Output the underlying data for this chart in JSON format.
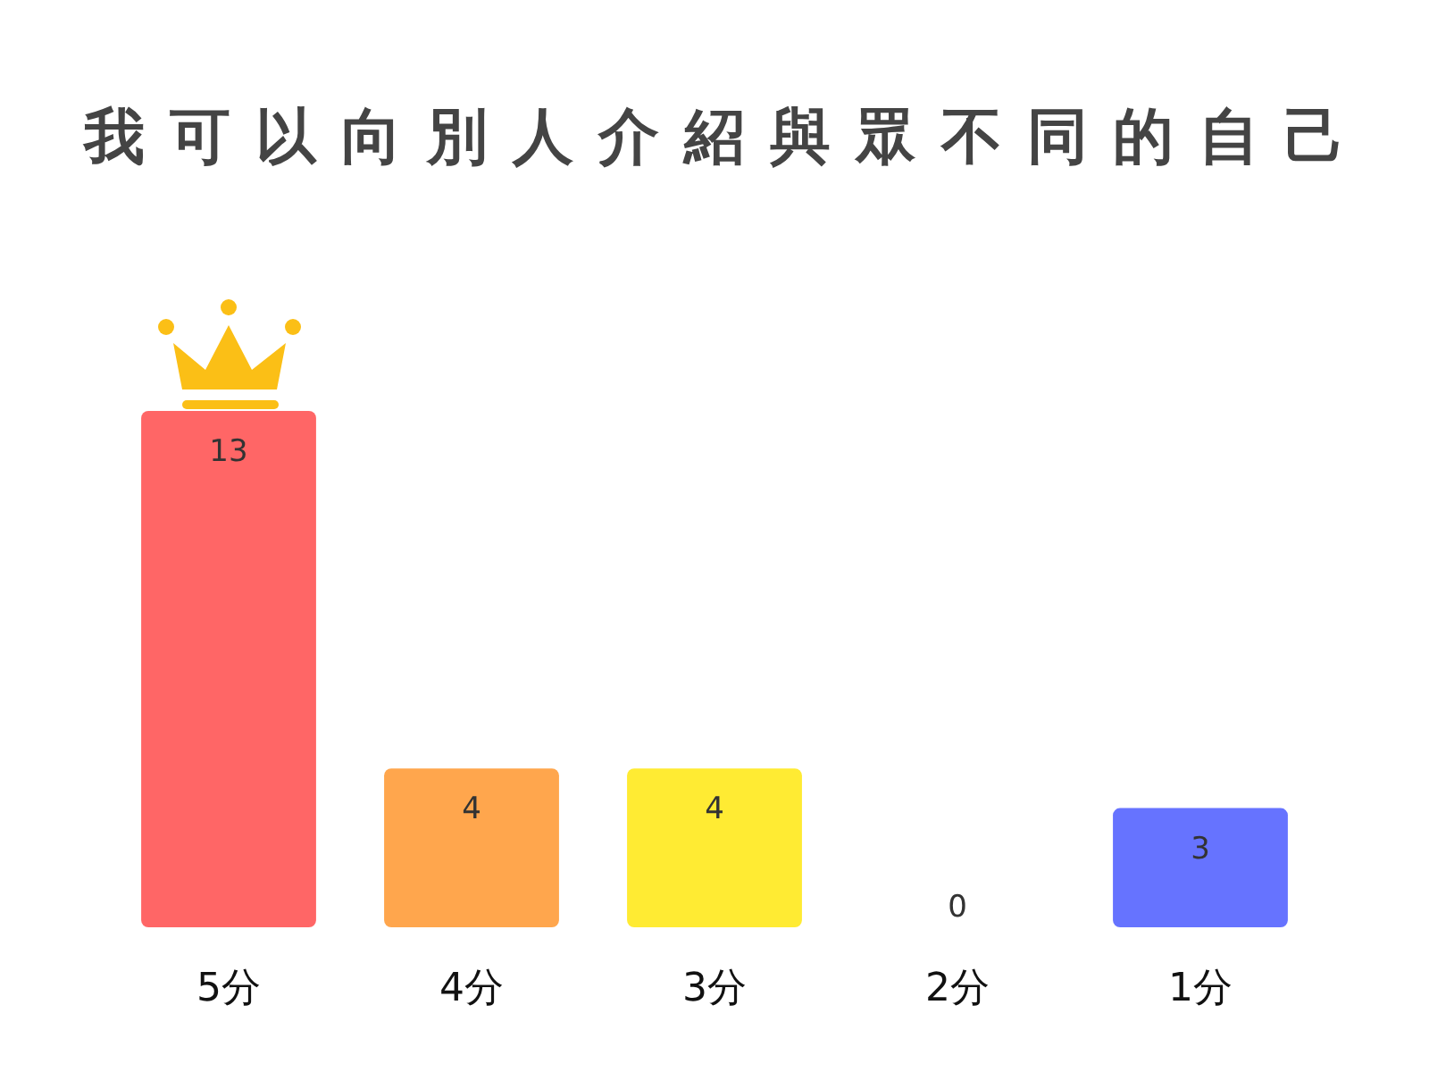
{
  "chart_data": {
    "type": "bar",
    "title": "我可以向別人介紹與眾不同的自己",
    "categories": [
      "5分",
      "4分",
      "3分",
      "2分",
      "1分"
    ],
    "values": [
      13,
      4,
      4,
      0,
      3
    ],
    "colors": [
      "#ff6666",
      "#ffa64d",
      "#ffeb33",
      null,
      "#6673ff"
    ],
    "data_labels": true
  }
}
